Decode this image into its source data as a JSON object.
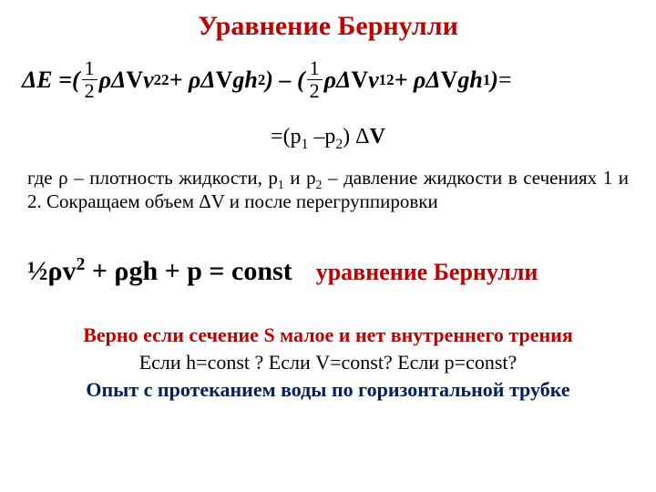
{
  "colors": {
    "title": "#c00000",
    "text": "#000000",
    "accent_red": "#c00000",
    "accent_blue": "#002060",
    "background": "#ffffff"
  },
  "title": "Уравнение Бернулли",
  "eq_main": {
    "lhs": "ΔE = ",
    "open1": "(",
    "half_num": "1",
    "half_den": "2",
    "t1a": "ρΔ",
    "t1b": "V",
    "t1c": "v",
    "t1_sub": "2",
    "t1_sup": "2",
    "plus1": " + ρΔ",
    "t2b": "V",
    "t2c": "gh",
    "t2_sub": "2",
    "close1": " ) – (",
    "t3a": "ρΔ",
    "t3b": "V",
    "t3c": "v",
    "t3_sub": "1",
    "t3_sup": "2",
    "plus2": " + ρΔ",
    "t4b": "V",
    "t4c": "gh",
    "t4_sub": "1",
    "close2": " )",
    "tail": "="
  },
  "eq_short": {
    "pre": "=(p",
    "s1": "1",
    "mid": " –p",
    "s2": "2",
    "post": ") Δ",
    "V": "V"
  },
  "para": {
    "a": "где ρ – плотность жидкости,  p",
    "s1": "1",
    "b": "  и  p",
    "s2": "2",
    "c": " – давление жидкости в сечениях 1 и 2.  Сокращаем  объем ΔV и после перегруппировки"
  },
  "eq_boxed": "½ρv",
  "eq_boxed_sup": "2",
  "eq_boxed_tail": " + ρgh + p = const",
  "eq_label": "уравнение Бернулли",
  "cond1": "Верно если сечение S малое и нет внутреннего трения",
  "cond2": "Если h=const ? Если V=const? Если  p=const?",
  "cond3": "Опыт с протеканием воды по горизонтальной трубке"
}
